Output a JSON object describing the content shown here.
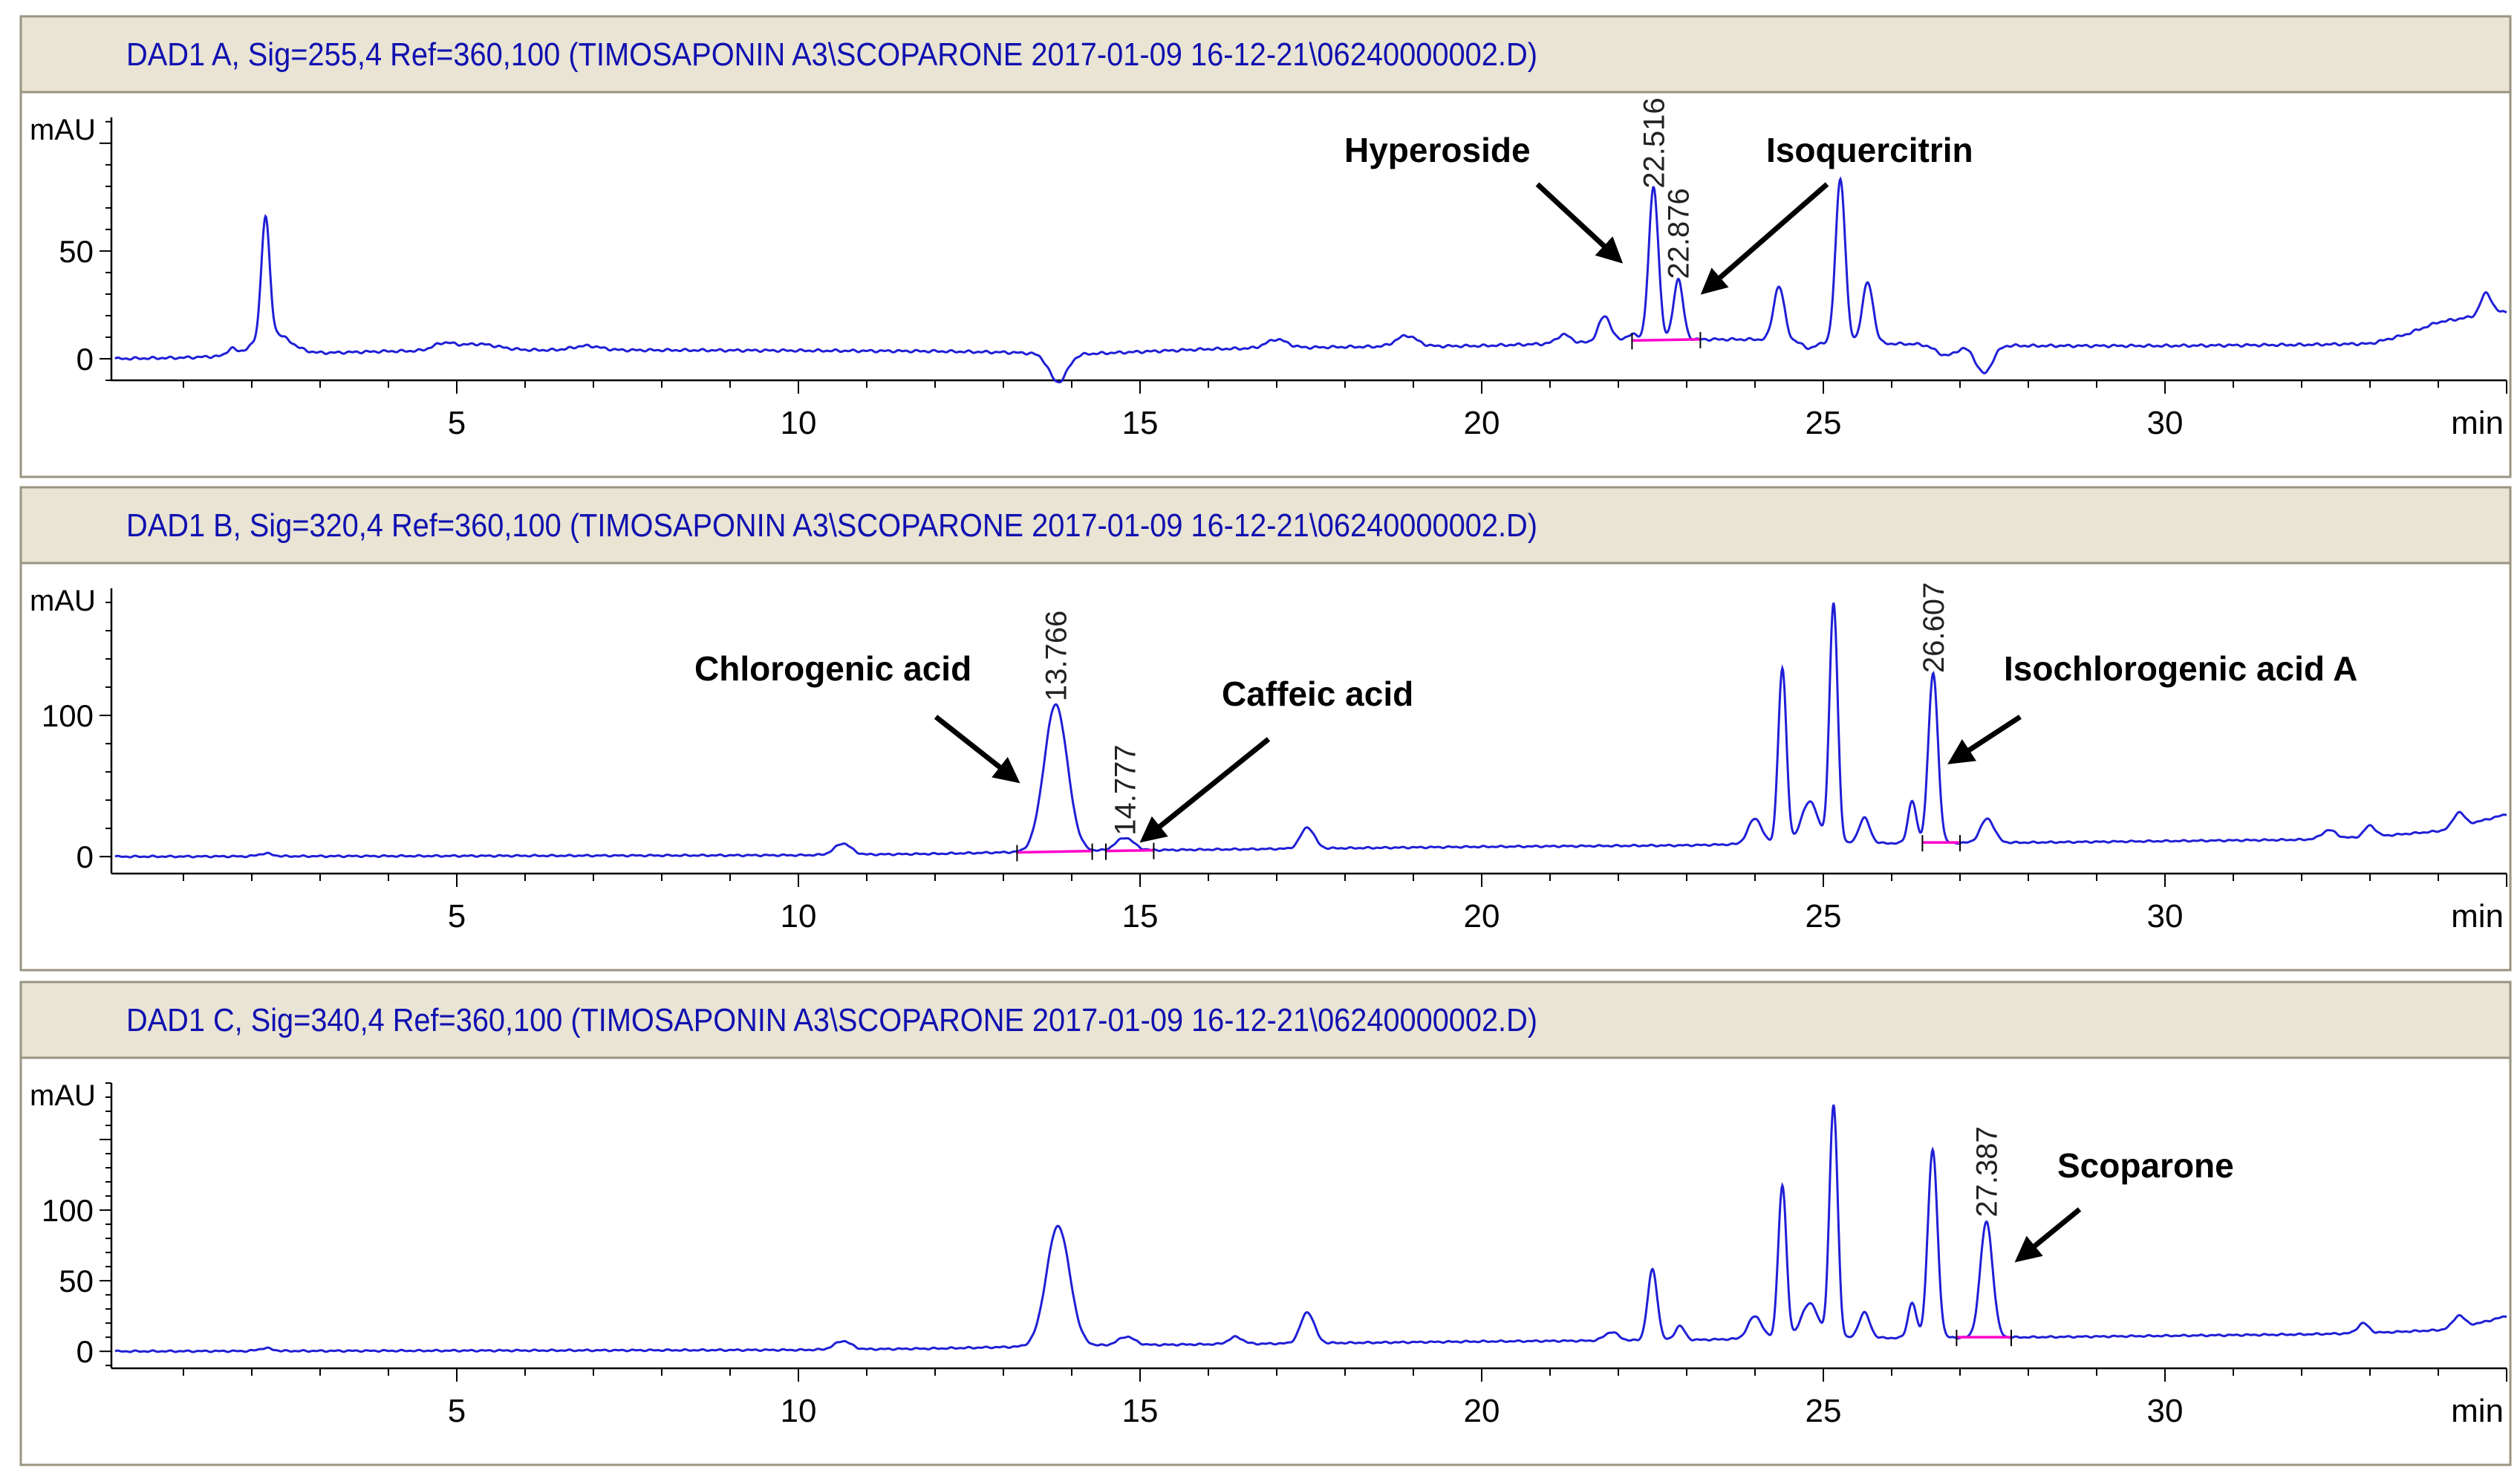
{
  "chart_data": [
    {
      "type": "line",
      "title": "DAD1 A, Sig=255,4 Ref=360,100 (TIMOSAPONIN A3\\SCOPARONE 2017-01-09 16-12-21\\06240000002.D)",
      "ylabel": "mAU",
      "xlabel": "min",
      "xlim": [
        0,
        35
      ],
      "ylim": [
        -10,
        112
      ],
      "x_ticks": [
        5,
        10,
        15,
        20,
        25,
        30
      ],
      "y_ticks": [
        0,
        50
      ],
      "grid": false,
      "series": [
        {
          "color": "#1f1fd6",
          "baseline": [
            [
              0,
              0
            ],
            [
              1,
              0.5
            ],
            [
              1.8,
              1.5
            ],
            [
              2.8,
              2.5
            ],
            [
              4,
              3.5
            ],
            [
              6,
              4
            ],
            [
              8,
              4
            ],
            [
              10,
              3.8
            ],
            [
              12,
              3.5
            ],
            [
              13,
              3
            ],
            [
              14,
              2
            ],
            [
              16,
              4.5
            ],
            [
              18,
              5.5
            ],
            [
              20,
              6
            ],
            [
              21,
              7
            ],
            [
              22,
              8
            ],
            [
              23,
              9
            ],
            [
              24,
              9
            ],
            [
              24.8,
              8
            ],
            [
              26,
              7
            ],
            [
              28,
              6
            ],
            [
              30,
              6
            ],
            [
              32,
              6.5
            ],
            [
              33,
              7
            ],
            [
              33.5,
              11
            ],
            [
              34,
              17
            ],
            [
              35,
              22
            ]
          ],
          "peaks": [
            [
              1.7,
              3,
              0.06
            ],
            [
              2.2,
              55,
              0.06
            ],
            [
              2.3,
              10,
              0.25
            ],
            [
              4.8,
              3,
              0.15
            ],
            [
              5.3,
              3,
              0.3
            ],
            [
              6.9,
              2,
              0.2
            ],
            [
              13.8,
              -13,
              0.13
            ],
            [
              17,
              4,
              0.15
            ],
            [
              18.9,
              5,
              0.15
            ],
            [
              21.2,
              4,
              0.1
            ],
            [
              21.8,
              12,
              0.09
            ],
            [
              22.2,
              3,
              0.1
            ],
            [
              22.516,
              71,
              0.07
            ],
            [
              22.876,
              28,
              0.07
            ],
            [
              24.35,
              25,
              0.08
            ],
            [
              24.8,
              -3,
              0.1
            ],
            [
              25.25,
              76,
              0.07
            ],
            [
              25.65,
              28,
              0.08
            ],
            [
              26.8,
              -5,
              0.15
            ],
            [
              27.35,
              -13,
              0.12
            ],
            [
              34.7,
              10,
              0.08
            ]
          ]
        }
      ],
      "peak_labels": [
        {
          "x": 22.516,
          "y": 79,
          "text": "22.516"
        },
        {
          "x": 22.876,
          "y": 37,
          "text": "22.876"
        }
      ],
      "integration": [
        [
          22.2,
          8.5,
          23.2,
          9
        ]
      ],
      "annotations": [
        {
          "text": "Hyperoside"
        },
        {
          "text": "Isoquercitrin"
        }
      ]
    },
    {
      "type": "line",
      "title": "DAD1 B, Sig=320,4 Ref=360,100 (TIMOSAPONIN A3\\SCOPARONE 2017-01-09 16-12-21\\06240000002.D)",
      "ylabel": "mAU",
      "xlabel": "min",
      "xlim": [
        0,
        35
      ],
      "ylim": [
        -12,
        190
      ],
      "x_ticks": [
        5,
        10,
        15,
        20,
        25,
        30
      ],
      "y_ticks": [
        0,
        100
      ],
      "grid": false,
      "series": [
        {
          "color": "#1f1fd6",
          "baseline": [
            [
              0,
              0
            ],
            [
              5,
              0.5
            ],
            [
              10,
              1
            ],
            [
              12,
              2
            ],
            [
              13,
              3
            ],
            [
              14,
              4
            ],
            [
              16,
              5
            ],
            [
              18,
              6
            ],
            [
              20,
              7
            ],
            [
              23,
              8
            ],
            [
              24,
              9
            ],
            [
              28,
              10
            ],
            [
              30,
              11
            ],
            [
              32,
              12
            ],
            [
              33,
              14
            ],
            [
              34,
              18
            ],
            [
              34.6,
              25
            ],
            [
              35,
              30
            ]
          ],
          "peaks": [
            [
              2.2,
              2,
              0.1
            ],
            [
              10.65,
              8,
              0.12
            ],
            [
              13.766,
              104,
              0.17
            ],
            [
              14.777,
              9,
              0.13
            ],
            [
              17.45,
              15,
              0.1
            ],
            [
              24.0,
              18,
              0.1
            ],
            [
              24.4,
              124,
              0.06
            ],
            [
              24.8,
              30,
              0.12
            ],
            [
              25.15,
              170,
              0.06
            ],
            [
              25.6,
              18,
              0.08
            ],
            [
              26.3,
              30,
              0.06
            ],
            [
              26.607,
              120,
              0.07
            ],
            [
              27.4,
              17,
              0.1
            ],
            [
              32.4,
              6,
              0.1
            ],
            [
              33.0,
              8,
              0.08
            ],
            [
              34.3,
              10,
              0.08
            ]
          ]
        }
      ],
      "peak_labels": [
        {
          "x": 13.766,
          "y": 110,
          "text": "13.766"
        },
        {
          "x": 14.777,
          "y": 15,
          "text": "14.777"
        },
        {
          "x": 26.607,
          "y": 130,
          "text": "26.607"
        }
      ],
      "integration": [
        [
          13.2,
          3,
          14.3,
          4
        ],
        [
          14.5,
          4,
          15.2,
          4.5
        ],
        [
          26.45,
          10,
          27.0,
          10
        ]
      ],
      "annotations": [
        {
          "text": "Chlorogenic acid"
        },
        {
          "text": "Caffeic acid"
        },
        {
          "text": "Isochlorogenic acid A"
        }
      ]
    },
    {
      "type": "line",
      "title": "DAD1 C, Sig=340,4 Ref=360,100 (TIMOSAPONIN A3\\SCOPARONE 2017-01-09 16-12-21\\06240000002.D)",
      "ylabel": "mAU",
      "xlabel": "min",
      "xlim": [
        0,
        35
      ],
      "ylim": [
        -12,
        190
      ],
      "x_ticks": [
        5,
        10,
        15,
        20,
        25,
        30
      ],
      "y_ticks": [
        0,
        50,
        100
      ],
      "grid": false,
      "series": [
        {
          "color": "#1f1fd6",
          "baseline": [
            [
              0,
              0
            ],
            [
              5,
              0.5
            ],
            [
              10,
              1
            ],
            [
              12,
              2
            ],
            [
              13,
              3
            ],
            [
              14,
              4
            ],
            [
              16,
              5
            ],
            [
              18,
              6
            ],
            [
              20,
              7
            ],
            [
              23,
              8
            ],
            [
              24,
              9
            ],
            [
              28,
              10
            ],
            [
              30,
              11
            ],
            [
              32,
              12
            ],
            [
              33,
              13
            ],
            [
              34,
              15
            ],
            [
              34.6,
              20
            ],
            [
              35,
              25
            ]
          ],
          "peaks": [
            [
              2.2,
              2,
              0.1
            ],
            [
              10.65,
              6,
              0.12
            ],
            [
              13.8,
              85,
              0.17
            ],
            [
              14.8,
              6,
              0.12
            ],
            [
              16.4,
              5,
              0.1
            ],
            [
              17.45,
              22,
              0.1
            ],
            [
              21.9,
              6,
              0.1
            ],
            [
              22.5,
              50,
              0.07
            ],
            [
              22.9,
              10,
              0.07
            ],
            [
              24.0,
              16,
              0.1
            ],
            [
              24.4,
              108,
              0.06
            ],
            [
              24.8,
              25,
              0.12
            ],
            [
              25.15,
              165,
              0.06
            ],
            [
              25.6,
              18,
              0.08
            ],
            [
              26.3,
              25,
              0.06
            ],
            [
              26.6,
              133,
              0.07
            ],
            [
              27.387,
              82,
              0.09
            ],
            [
              32.9,
              7,
              0.08
            ],
            [
              34.3,
              8,
              0.08
            ]
          ]
        }
      ],
      "peak_labels": [
        {
          "x": 27.387,
          "y": 95,
          "text": "27.387"
        }
      ],
      "integration": [
        [
          26.95,
          10,
          27.75,
          10
        ]
      ],
      "annotations": [
        {
          "text": "Scoparone"
        }
      ]
    }
  ]
}
